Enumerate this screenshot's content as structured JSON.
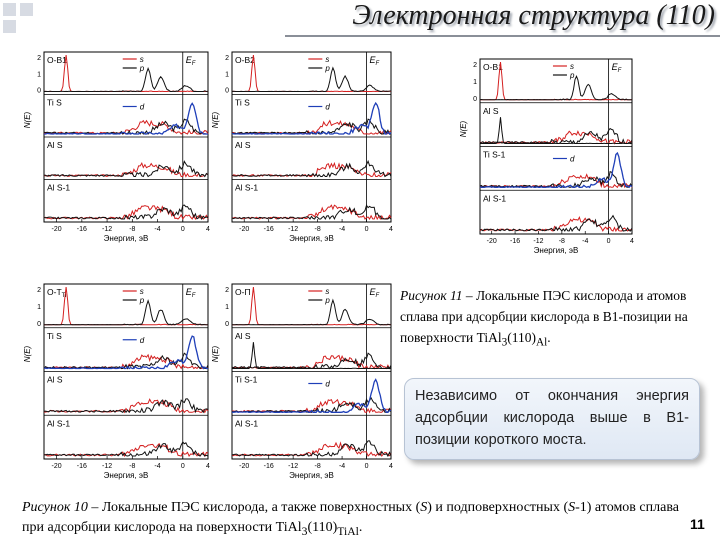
{
  "slide": {
    "title": "Электронная структура (110)",
    "page_number": "11"
  },
  "figure11": {
    "caption_lead": "Рисунок 11",
    "caption_text": " – Локальные ПЭС кислорода и атомов сплава при адсорбции кислорода в B1-позиции на поверхности TiAl",
    "caption_sub3": "3",
    "caption_after": "(110)",
    "caption_subAl": "Al",
    "caption_end": "."
  },
  "note": {
    "text": "Независимо от окончания энергия адсорбции кислорода выше в B1-позиции короткого моста."
  },
  "figure10": {
    "caption_lead": "Рисунок 10",
    "caption_text": " – Локальные ПЭС кислорода, а также поверхностных (",
    "caption_S": "S",
    "caption_mid": ") и подповерхностных (",
    "caption_S1": "S",
    "caption_tail1": "-1) атомов сплава при адсорбции кислорода на поверхности TiAl",
    "caption_sub3": "3",
    "caption_after": "(110)",
    "caption_subTiAl": "TiAl",
    "caption_end": "."
  },
  "panels": [
    {
      "id": "p1",
      "rows": [
        "O-B1",
        "Ti S",
        "Al S",
        "Al S-1"
      ],
      "legend_s": "s",
      "legend_p": "p",
      "legend_d": "d",
      "ef": "E",
      "ef_sub": "F",
      "ylabel": "N(E)",
      "xlabel": "Энергия, эВ",
      "xticks": [
        "-20",
        "-16",
        "-12",
        "-8",
        "-4",
        "0",
        "4"
      ],
      "yticks": [
        "2",
        "1",
        "0"
      ]
    },
    {
      "id": "p2",
      "rows": [
        "O-B2",
        "Ti S",
        "Al S",
        "Al S-1"
      ],
      "legend_s": "s",
      "legend_p": "p",
      "legend_d": "d",
      "ef": "E",
      "ef_sub": "F",
      "ylabel": "N(E)",
      "xlabel": "Энергия, эВ",
      "xticks": [
        "-20",
        "-16",
        "-12",
        "-8",
        "-4",
        "0",
        "4"
      ],
      "yticks": [
        "2",
        "1",
        "0"
      ]
    },
    {
      "id": "p3",
      "rows": [
        "O-B1",
        "Al S",
        "Ti S-1",
        "Al S-1"
      ],
      "legend_s": "s",
      "legend_p": "p",
      "legend_d": "d",
      "ef": "E",
      "ef_sub": "F",
      "ylabel": "N(E)",
      "xlabel": "Энергия, эВ",
      "xticks": [
        "-20",
        "-16",
        "-12",
        "-8",
        "-4",
        "0",
        "4"
      ],
      "yticks": [
        "2",
        "1",
        "0"
      ]
    },
    {
      "id": "p4",
      "rows": [
        "O-T",
        "Ti S",
        "Al S",
        "Al S-1"
      ],
      "row0_sub": "Ti",
      "legend_s": "s",
      "legend_p": "p",
      "legend_d": "d",
      "ef": "E",
      "ef_sub": "F",
      "ylabel": "N(E)",
      "xlabel": "Энергия, эВ",
      "xticks": [
        "-20",
        "-16",
        "-12",
        "-8",
        "-4",
        "0",
        "4"
      ],
      "yticks": [
        "2",
        "1",
        "0"
      ]
    },
    {
      "id": "p5",
      "rows": [
        "O-П",
        "Al S",
        "Ti S-1",
        "Al S-1"
      ],
      "legend_s": "s",
      "legend_p": "p",
      "legend_d": "d",
      "ef": "E",
      "ef_sub": "F",
      "ylabel": "N(E)",
      "xlabel": "Энергия, эВ",
      "xticks": [
        "-20",
        "-16",
        "-12",
        "-8",
        "-4",
        "0",
        "4"
      ],
      "yticks": [
        "2",
        "1",
        "0"
      ]
    }
  ],
  "colors": {
    "s": "#d42020",
    "p": "#111111",
    "d": "#1f3fb8",
    "accent": "#d7dbe3"
  }
}
